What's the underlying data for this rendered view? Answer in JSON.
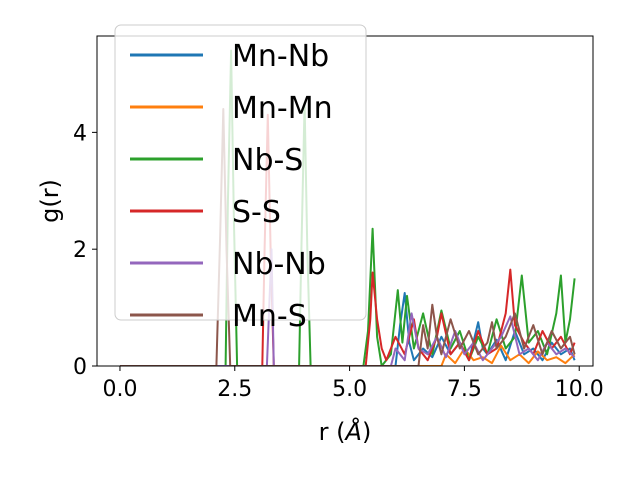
{
  "chart_data": {
    "type": "line",
    "xlabel": "r (",
    "xlabel_unit": "Å",
    "xlabel_close": ")",
    "ylabel": "g(r)",
    "xlim": [
      -0.5,
      10.3
    ],
    "ylim": [
      0,
      5.65
    ],
    "x_ticks": [
      "0.0",
      "2.5",
      "5.0",
      "7.5",
      "10.0"
    ],
    "x_tick_values": [
      0,
      2.5,
      5,
      7.5,
      10
    ],
    "y_ticks": [
      "0",
      "2",
      "4"
    ],
    "y_tick_values": [
      0,
      2,
      4
    ],
    "legend_position": "upper-left",
    "series": [
      {
        "name": "Mn-Nb",
        "color": "#1f77b4",
        "x": [
          0,
          6.0,
          6.1,
          6.2,
          6.3,
          6.4,
          6.6,
          6.8,
          7.0,
          7.2,
          7.4,
          7.6,
          7.8,
          7.9,
          8.0,
          8.2,
          8.4,
          8.6,
          8.8,
          9.0,
          9.2,
          9.4,
          9.6,
          9.8,
          9.9
        ],
        "y": [
          0,
          0,
          0.7,
          1.25,
          0.4,
          0.1,
          0.3,
          0.15,
          0.5,
          0.2,
          0.4,
          0.1,
          0.75,
          0.3,
          0.2,
          0.45,
          0.1,
          0.6,
          0.2,
          0.3,
          0.1,
          0.4,
          0.2,
          0.3,
          0.1
        ]
      },
      {
        "name": "Mn-Mn",
        "color": "#ff7f0e",
        "x": [
          0,
          7.0,
          7.1,
          7.3,
          7.5,
          7.7,
          7.9,
          8.1,
          8.3,
          8.5,
          8.7,
          8.9,
          9.1,
          9.3,
          9.5,
          9.7,
          9.9
        ],
        "y": [
          0,
          0,
          0.2,
          0.05,
          0.3,
          0.1,
          0.15,
          0.05,
          0.35,
          0.1,
          0.2,
          0.05,
          0.25,
          0.1,
          0.15,
          0.05,
          0.2
        ]
      },
      {
        "name": "Nb-S",
        "color": "#2ca02c",
        "x": [
          0,
          2.3,
          2.35,
          2.42,
          2.48,
          2.55,
          3.9,
          3.95,
          4.02,
          4.08,
          4.15,
          5.3,
          5.4,
          5.5,
          5.6,
          5.7,
          5.9,
          6.05,
          6.15,
          6.25,
          6.4,
          6.6,
          6.8,
          7.0,
          7.2,
          7.4,
          7.6,
          7.8,
          8.0,
          8.2,
          8.4,
          8.6,
          8.75,
          8.9,
          9.1,
          9.3,
          9.5,
          9.6,
          9.7,
          9.8,
          9.9
        ],
        "y": [
          0,
          0,
          2.8,
          5.4,
          2.5,
          0,
          0,
          2.0,
          4.5,
          2.0,
          0,
          0,
          0.6,
          2.35,
          0.5,
          0,
          0.2,
          1.3,
          0.4,
          1.2,
          0.3,
          0.9,
          0.2,
          0.95,
          0.3,
          0.6,
          0.1,
          0.5,
          0.2,
          0.8,
          0.3,
          0.5,
          1.55,
          0.4,
          0.6,
          0.2,
          0.9,
          1.55,
          0.4,
          0.8,
          1.5
        ]
      },
      {
        "name": "S-S",
        "color": "#d62728",
        "x": [
          0,
          3.1,
          3.15,
          3.22,
          3.28,
          3.35,
          5.35,
          5.45,
          5.5,
          5.6,
          5.7,
          5.8,
          6.0,
          6.2,
          6.4,
          6.5,
          6.7,
          6.9,
          7.0,
          7.2,
          7.4,
          7.6,
          7.8,
          8.0,
          8.2,
          8.4,
          8.5,
          8.6,
          8.8,
          9.0,
          9.2,
          9.4,
          9.6,
          9.8,
          9.9
        ],
        "y": [
          0,
          0,
          2.0,
          4.3,
          2.0,
          0,
          0,
          0.8,
          1.6,
          0.8,
          0.3,
          0.1,
          0.5,
          0.2,
          0.8,
          0.3,
          0.1,
          0.5,
          0.9,
          0.2,
          0.4,
          0.1,
          0.6,
          0.2,
          0.3,
          0.9,
          1.65,
          0.7,
          0.4,
          0.2,
          0.6,
          0.3,
          0.5,
          0.2,
          0.4
        ]
      },
      {
        "name": "Nb-Nb",
        "color": "#9467bd",
        "x": [
          0,
          3.2,
          3.25,
          3.3,
          3.35,
          5.9,
          6.0,
          6.2,
          6.35,
          6.5,
          6.7,
          6.9,
          7.1,
          7.3,
          7.5,
          7.7,
          7.9,
          8.1,
          8.3,
          8.5,
          8.7,
          8.9,
          9.1,
          9.3,
          9.5,
          9.7,
          9.9
        ],
        "y": [
          0,
          0,
          1.0,
          2.0,
          0,
          0,
          0.3,
          0.1,
          0.9,
          0.3,
          0.2,
          0.5,
          0.15,
          0.6,
          0.2,
          0.4,
          0.1,
          0.3,
          0.5,
          0.85,
          0.2,
          0.3,
          0.1,
          0.4,
          0.2,
          0.3,
          0.15
        ]
      },
      {
        "name": "Mn-S",
        "color": "#8c564b",
        "x": [
          0,
          2.1,
          2.18,
          2.25,
          2.32,
          2.4,
          6.5,
          6.6,
          6.7,
          6.8,
          6.9,
          7.0,
          7.2,
          7.4,
          7.6,
          7.8,
          8.0,
          8.1,
          8.2,
          8.4,
          8.6,
          8.8,
          9.0,
          9.2,
          9.4,
          9.6,
          9.8,
          9.9
        ],
        "y": [
          0,
          0,
          2.2,
          4.4,
          2.0,
          0,
          0,
          0.7,
          0.3,
          1.05,
          0.5,
          0.2,
          0.8,
          0.3,
          0.6,
          0.2,
          0.4,
          0.75,
          0.3,
          0.5,
          0.9,
          0.3,
          0.7,
          0.2,
          0.6,
          0.3,
          0.5,
          0.2
        ]
      }
    ]
  }
}
